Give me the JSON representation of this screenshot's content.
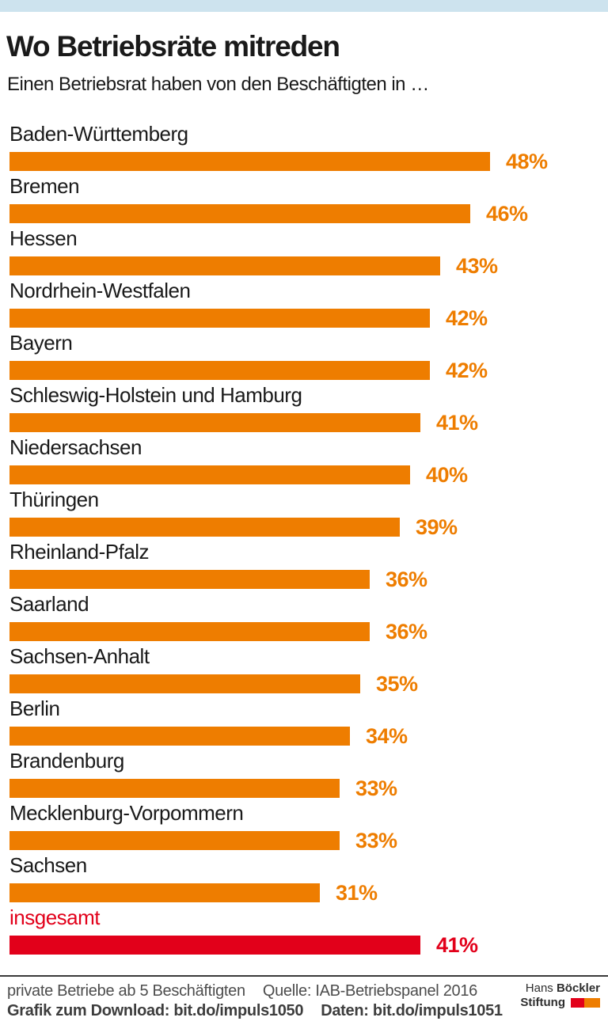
{
  "header": {
    "top_bar_color": "#cde3ee",
    "title": "Wo Betriebsräte mitreden",
    "subtitle": "Einen Betriebsrat haben von den Beschäftigten in …"
  },
  "chart_data": {
    "type": "bar",
    "orientation": "horizontal",
    "unit": "%",
    "categories": [
      "Baden-Württemberg",
      "Bremen",
      "Hessen",
      "Nordrhein-Westfalen",
      "Bayern",
      "Schleswig-Holstein und Hamburg",
      "Niedersachsen",
      "Thüringen",
      "Rheinland-Pfalz",
      "Saarland",
      "Sachsen-Anhalt",
      "Berlin",
      "Brandenburg",
      "Mecklenburg-Vorpommern",
      "Sachsen",
      "insgesamt"
    ],
    "values": [
      48,
      46,
      43,
      42,
      42,
      41,
      40,
      39,
      36,
      36,
      35,
      34,
      33,
      33,
      31,
      41
    ],
    "bar_color": "#ee7d00",
    "highlight_category": "insgesamt",
    "highlight_color": "#e2001a",
    "xlim": [
      0,
      50
    ],
    "grid": false,
    "legend": false,
    "value_labels": "right_of_bar"
  },
  "footer": {
    "note": "private Betriebe ab 5 Beschäftigten",
    "source": "Quelle: IAB-Betriebspanel 2016",
    "download": "Grafik zum Download: bit.do/impuls1050",
    "data_link": "Daten: bit.do/impuls1051",
    "logo": {
      "name_regular": "Hans",
      "name_bold": "Böckler",
      "line2": "Stiftung",
      "block_colors": [
        "#e2001a",
        "#ee7d00"
      ]
    }
  }
}
